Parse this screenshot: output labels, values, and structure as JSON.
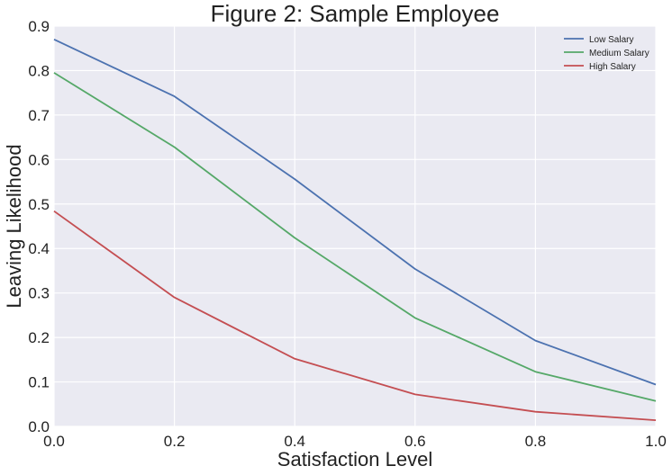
{
  "chart_data": {
    "type": "line",
    "title": "Figure 2: Sample Employee",
    "xlabel": "Satisfaction Level",
    "ylabel": "Leaving Likelihood",
    "x": [
      0.0,
      0.2,
      0.4,
      0.6,
      0.8,
      1.0
    ],
    "xlim": [
      0.0,
      1.0
    ],
    "ylim": [
      0.0,
      0.9
    ],
    "x_ticks": [
      "0.0",
      "0.2",
      "0.4",
      "0.6",
      "0.8",
      "1.0"
    ],
    "y_ticks": [
      "0.0",
      "0.1",
      "0.2",
      "0.3",
      "0.4",
      "0.5",
      "0.6",
      "0.7",
      "0.8",
      "0.9"
    ],
    "grid": true,
    "legend_position": "top-right",
    "series": [
      {
        "name": "Low Salary",
        "color": "#4c72b0",
        "values": [
          0.87,
          0.742,
          0.556,
          0.354,
          0.193,
          0.094
        ]
      },
      {
        "name": "Medium Salary",
        "color": "#55a868",
        "values": [
          0.795,
          0.628,
          0.424,
          0.244,
          0.123,
          0.057
        ]
      },
      {
        "name": "High Salary",
        "color": "#c44e52",
        "values": [
          0.484,
          0.29,
          0.152,
          0.072,
          0.033,
          0.014
        ]
      }
    ]
  }
}
